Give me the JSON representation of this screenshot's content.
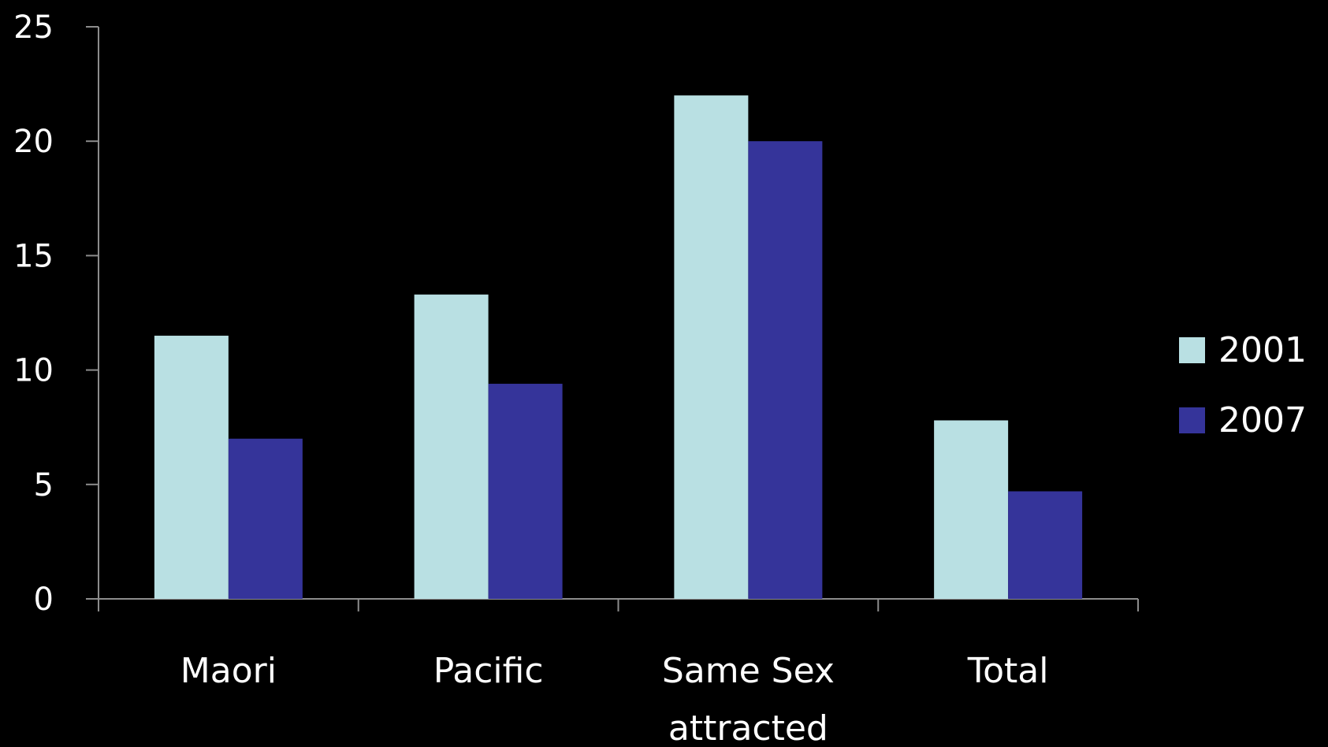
{
  "chart_data": {
    "type": "bar",
    "title": "",
    "xlabel": "",
    "ylabel": "",
    "ylim": [
      0,
      25
    ],
    "yticks": [
      "0",
      "5",
      "10",
      "15",
      "20",
      "25"
    ],
    "categories": [
      [
        "Maori"
      ],
      [
        "Pacific"
      ],
      [
        "Same Sex",
        "attracted"
      ],
      [
        "Total"
      ]
    ],
    "series": [
      {
        "name": "2001",
        "color": "#b9e0e3",
        "values": [
          11.5,
          13.3,
          22.0,
          7.8
        ]
      },
      {
        "name": "2007",
        "color": "#35349a",
        "values": [
          7.0,
          9.4,
          20.0,
          4.7
        ]
      }
    ],
    "legend": {
      "position": "right"
    },
    "grid": false,
    "background": "#000000",
    "axis_color": "#8c8c8c"
  }
}
